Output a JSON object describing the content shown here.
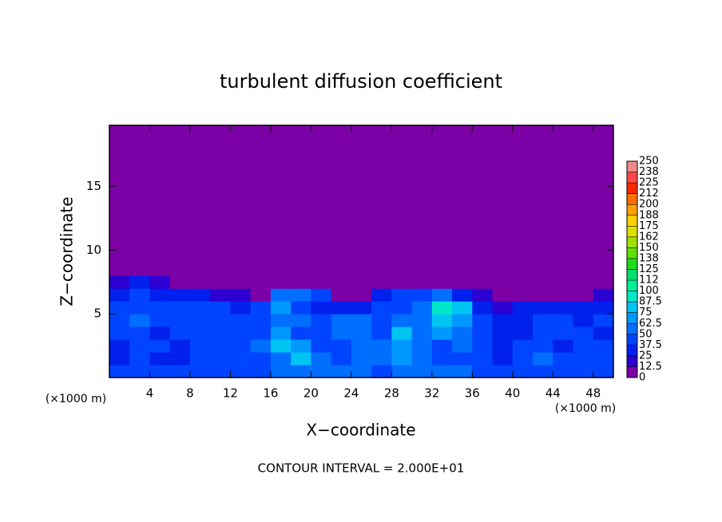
{
  "chart_data": {
    "type": "heatmap",
    "title": "turbulent diffusion coefficient",
    "x_label": "X−coordinate",
    "y_label": "Z−coordinate",
    "x_unit_labels": [
      "(×1000 m)",
      "(×1000 m)"
    ],
    "annotation": "CONTOUR INTERVAL = 2.000E+01",
    "xlim": [
      0,
      50
    ],
    "ylim": [
      0,
      19.8
    ],
    "xticks": [
      4,
      8,
      12,
      16,
      20,
      24,
      28,
      32,
      36,
      40,
      44,
      48
    ],
    "yticks": [
      5,
      10,
      15
    ],
    "x_bins": [
      0,
      2,
      4,
      6,
      8,
      10,
      12,
      14,
      16,
      18,
      20,
      22,
      24,
      26,
      28,
      30,
      32,
      34,
      36,
      38,
      40,
      42,
      44,
      46,
      48,
      50
    ],
    "y_bins": [
      0,
      1,
      2,
      3,
      4,
      5,
      6,
      7,
      8,
      19.8
    ],
    "z": [
      [
        40,
        45,
        40,
        45,
        45,
        40,
        45,
        45,
        50,
        55,
        55,
        55,
        50,
        45,
        50,
        55,
        55,
        50,
        45,
        40,
        40,
        45,
        45,
        40,
        45
      ],
      [
        35,
        40,
        35,
        30,
        40,
        45,
        40,
        45,
        60,
        75,
        60,
        45,
        55,
        55,
        70,
        55,
        45,
        40,
        40,
        35,
        40,
        50,
        40,
        40,
        45
      ],
      [
        35,
        45,
        40,
        35,
        40,
        45,
        40,
        50,
        80,
        70,
        45,
        40,
        55,
        50,
        65,
        55,
        45,
        55,
        45,
        35,
        40,
        45,
        35,
        40,
        40
      ],
      [
        40,
        45,
        35,
        40,
        45,
        40,
        40,
        45,
        70,
        45,
        40,
        55,
        60,
        45,
        75,
        60,
        70,
        60,
        40,
        30,
        35,
        40,
        40,
        40,
        35
      ],
      [
        40,
        50,
        40,
        45,
        40,
        40,
        45,
        40,
        60,
        50,
        45,
        50,
        50,
        45,
        60,
        60,
        75,
        70,
        45,
        30,
        30,
        40,
        40,
        35,
        40
      ],
      [
        40,
        45,
        40,
        45,
        45,
        40,
        35,
        40,
        70,
        40,
        35,
        30,
        30,
        45,
        45,
        60,
        90,
        80,
        30,
        20,
        25,
        25,
        30,
        30,
        30
      ],
      [
        35,
        40,
        30,
        30,
        25,
        20,
        15,
        5,
        60,
        50,
        40,
        5,
        10,
        25,
        40,
        40,
        60,
        30,
        15,
        5,
        0,
        0,
        5,
        10,
        20
      ],
      [
        20,
        30,
        15,
        5,
        0,
        0,
        0,
        0,
        0,
        0,
        0,
        0,
        0,
        5,
        5,
        0,
        10,
        0,
        0,
        0,
        0,
        0,
        0,
        0,
        10
      ],
      [
        0,
        0,
        0,
        0,
        0,
        0,
        0,
        0,
        0,
        0,
        0,
        0,
        0,
        0,
        0,
        0,
        0,
        0,
        0,
        0,
        0,
        0,
        0,
        0,
        0
      ]
    ],
    "colorbar": {
      "levels": [
        0,
        12.5,
        25,
        37.5,
        50,
        62.5,
        75,
        87.5,
        100,
        {
          "value": 112.5,
          "label": "112"
        },
        125,
        {
          "value": 137.5,
          "label": "138"
        },
        150,
        {
          "value": 162.5,
          "label": "162"
        },
        175,
        {
          "value": 187.5,
          "label": "188"
        },
        200,
        {
          "value": 212.5,
          "label": "212"
        },
        225,
        {
          "value": 237.5,
          "label": "238"
        },
        250
      ],
      "colors": [
        "#7b00a5",
        "#2c00d2",
        "#0020ee",
        "#0044ff",
        "#006eff",
        "#0098ff",
        "#00c4f2",
        "#00e8c8",
        "#00f09a",
        "#00e070",
        "#20dc20",
        "#60e000",
        "#a0e000",
        "#e0e000",
        "#ffd000",
        "#ffa000",
        "#ff7000",
        "#ff2a00",
        "#ff4848",
        "#f08a8a"
      ]
    }
  }
}
